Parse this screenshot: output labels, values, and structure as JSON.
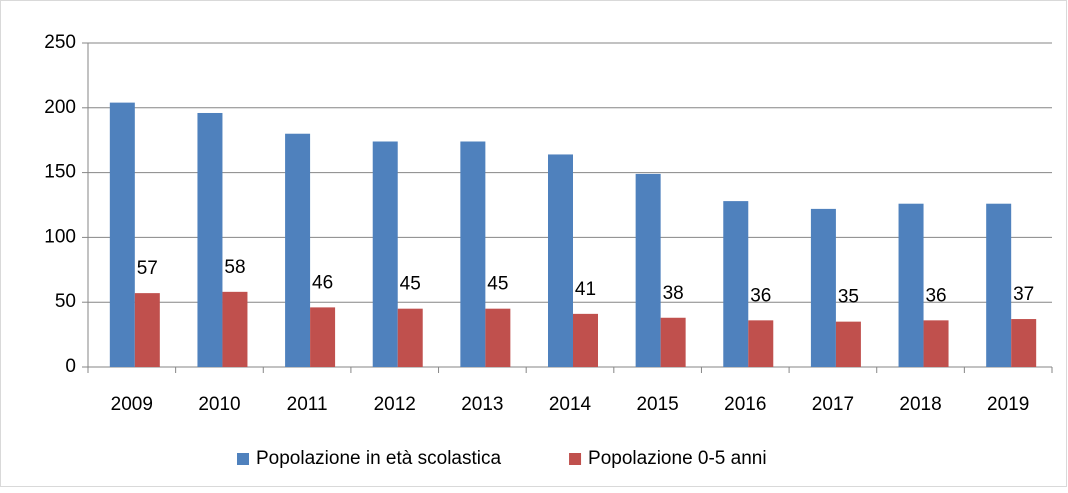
{
  "chart_data": {
    "type": "bar",
    "categories": [
      "2009",
      "2010",
      "2011",
      "2012",
      "2013",
      "2014",
      "2015",
      "2016",
      "2017",
      "2018",
      "2019"
    ],
    "series": [
      {
        "name": "Popolazione in età scolastica",
        "color": "#4f81bd",
        "values": [
          204,
          196,
          180,
          174,
          174,
          164,
          149,
          128,
          122,
          126,
          126
        ]
      },
      {
        "name": "Popolazione 0-5 anni",
        "color": "#c0504d",
        "values": [
          57,
          58,
          46,
          45,
          45,
          41,
          38,
          36,
          35,
          36,
          37
        ],
        "data_labels": true
      }
    ],
    "ylim": [
      0,
      250
    ],
    "yticks": [
      0,
      50,
      100,
      150,
      200,
      250
    ],
    "grid": true,
    "legend": "bottom"
  }
}
